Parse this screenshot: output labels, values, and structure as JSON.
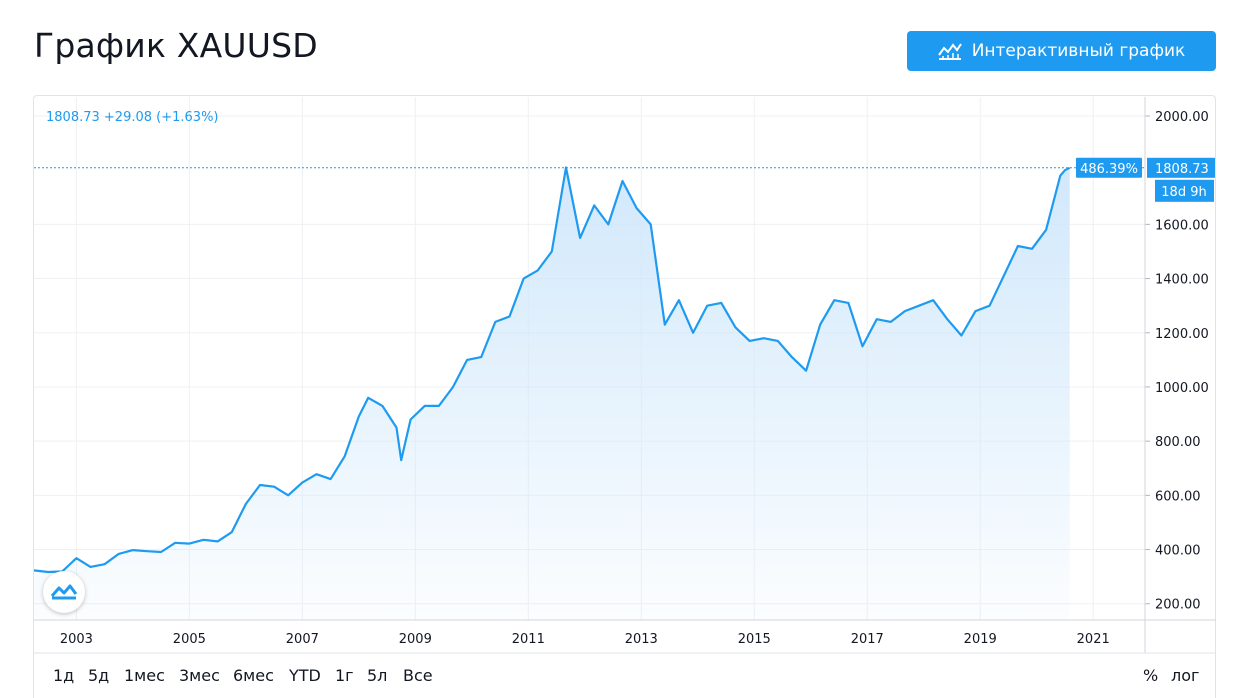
{
  "page": {
    "title": "График XAUUSD",
    "interactive_button_label": "Интерактивный график",
    "readout": {
      "last": "1808.73",
      "change": "+29.08",
      "change_pct": "(+1.63%)"
    },
    "price_label": "1808.73",
    "percent_label": "486.39%",
    "countdown_label": "18d 9h",
    "ranges": [
      "1д",
      "5д",
      "1мес",
      "3мес",
      "6мес",
      "YTD",
      "1г",
      "5л",
      "Все"
    ],
    "scale_options": [
      "%",
      "лог"
    ],
    "colors": {
      "line": "#1e9bf0",
      "fill_top": "#cfe7fb",
      "grid": "#eef0f3",
      "button": "#1e9bf0"
    }
  },
  "chart_data": {
    "type": "area",
    "title": "График XAUUSD",
    "xlabel": "",
    "ylabel": "",
    "x_ticks": [
      "2003",
      "2005",
      "2007",
      "2009",
      "2011",
      "2013",
      "2015",
      "2017",
      "2019",
      "2021"
    ],
    "y_ticks": [
      "200.00",
      "400.00",
      "600.00",
      "800.00",
      "1000.00",
      "1200.00",
      "1400.00",
      "1600.00",
      "2000.00"
    ],
    "ylim": [
      140,
      2070
    ],
    "xlim": [
      "2002-04",
      "2021-12"
    ],
    "grid": true,
    "legend": "none",
    "series": [
      {
        "x": [
          "2002-04",
          "2002-07",
          "2002-10",
          "2003-01",
          "2003-04",
          "2003-07",
          "2003-10",
          "2004-01",
          "2004-04",
          "2004-07",
          "2004-10",
          "2005-01",
          "2005-04",
          "2005-07",
          "2005-10",
          "2006-01",
          "2006-04",
          "2006-07",
          "2006-10",
          "2007-01",
          "2007-04",
          "2007-07",
          "2007-10",
          "2008-01",
          "2008-03",
          "2008-06",
          "2008-09",
          "2008-10",
          "2008-12",
          "2009-03",
          "2009-06",
          "2009-09",
          "2009-12",
          "2010-03",
          "2010-06",
          "2010-09",
          "2010-12",
          "2011-03",
          "2011-06",
          "2011-09",
          "2011-12",
          "2012-03",
          "2012-06",
          "2012-09",
          "2012-12",
          "2013-03",
          "2013-06",
          "2013-09",
          "2013-12",
          "2014-03",
          "2014-06",
          "2014-09",
          "2014-12",
          "2015-03",
          "2015-06",
          "2015-09",
          "2015-12",
          "2016-03",
          "2016-06",
          "2016-09",
          "2016-12",
          "2017-03",
          "2017-06",
          "2017-09",
          "2017-12",
          "2018-03",
          "2018-06",
          "2018-09",
          "2018-12",
          "2019-03",
          "2019-06",
          "2019-09",
          "2019-12",
          "2020-03",
          "2020-06",
          "2020-07",
          "2020-08"
        ],
        "values": [
          323,
          317,
          319,
          368,
          336,
          346,
          384,
          398,
          394,
          391,
          425,
          422,
          436,
          430,
          464,
          568,
          638,
          632,
          600,
          647,
          678,
          660,
          744,
          891,
          960,
          930,
          850,
          730,
          880,
          930,
          930,
          1000,
          1100,
          1110,
          1240,
          1260,
          1400,
          1430,
          1500,
          1810,
          1550,
          1670,
          1600,
          1760,
          1660,
          1600,
          1230,
          1320,
          1200,
          1300,
          1310,
          1220,
          1170,
          1180,
          1170,
          1110,
          1060,
          1230,
          1320,
          1310,
          1150,
          1250,
          1240,
          1280,
          1300,
          1320,
          1250,
          1190,
          1280,
          1300,
          1410,
          1520,
          1510,
          1580,
          1780,
          1800,
          1808.73
        ]
      }
    ],
    "last_value": 1808.73,
    "change": 29.08,
    "change_pct": 1.63,
    "percent_change_total": 486.39
  }
}
